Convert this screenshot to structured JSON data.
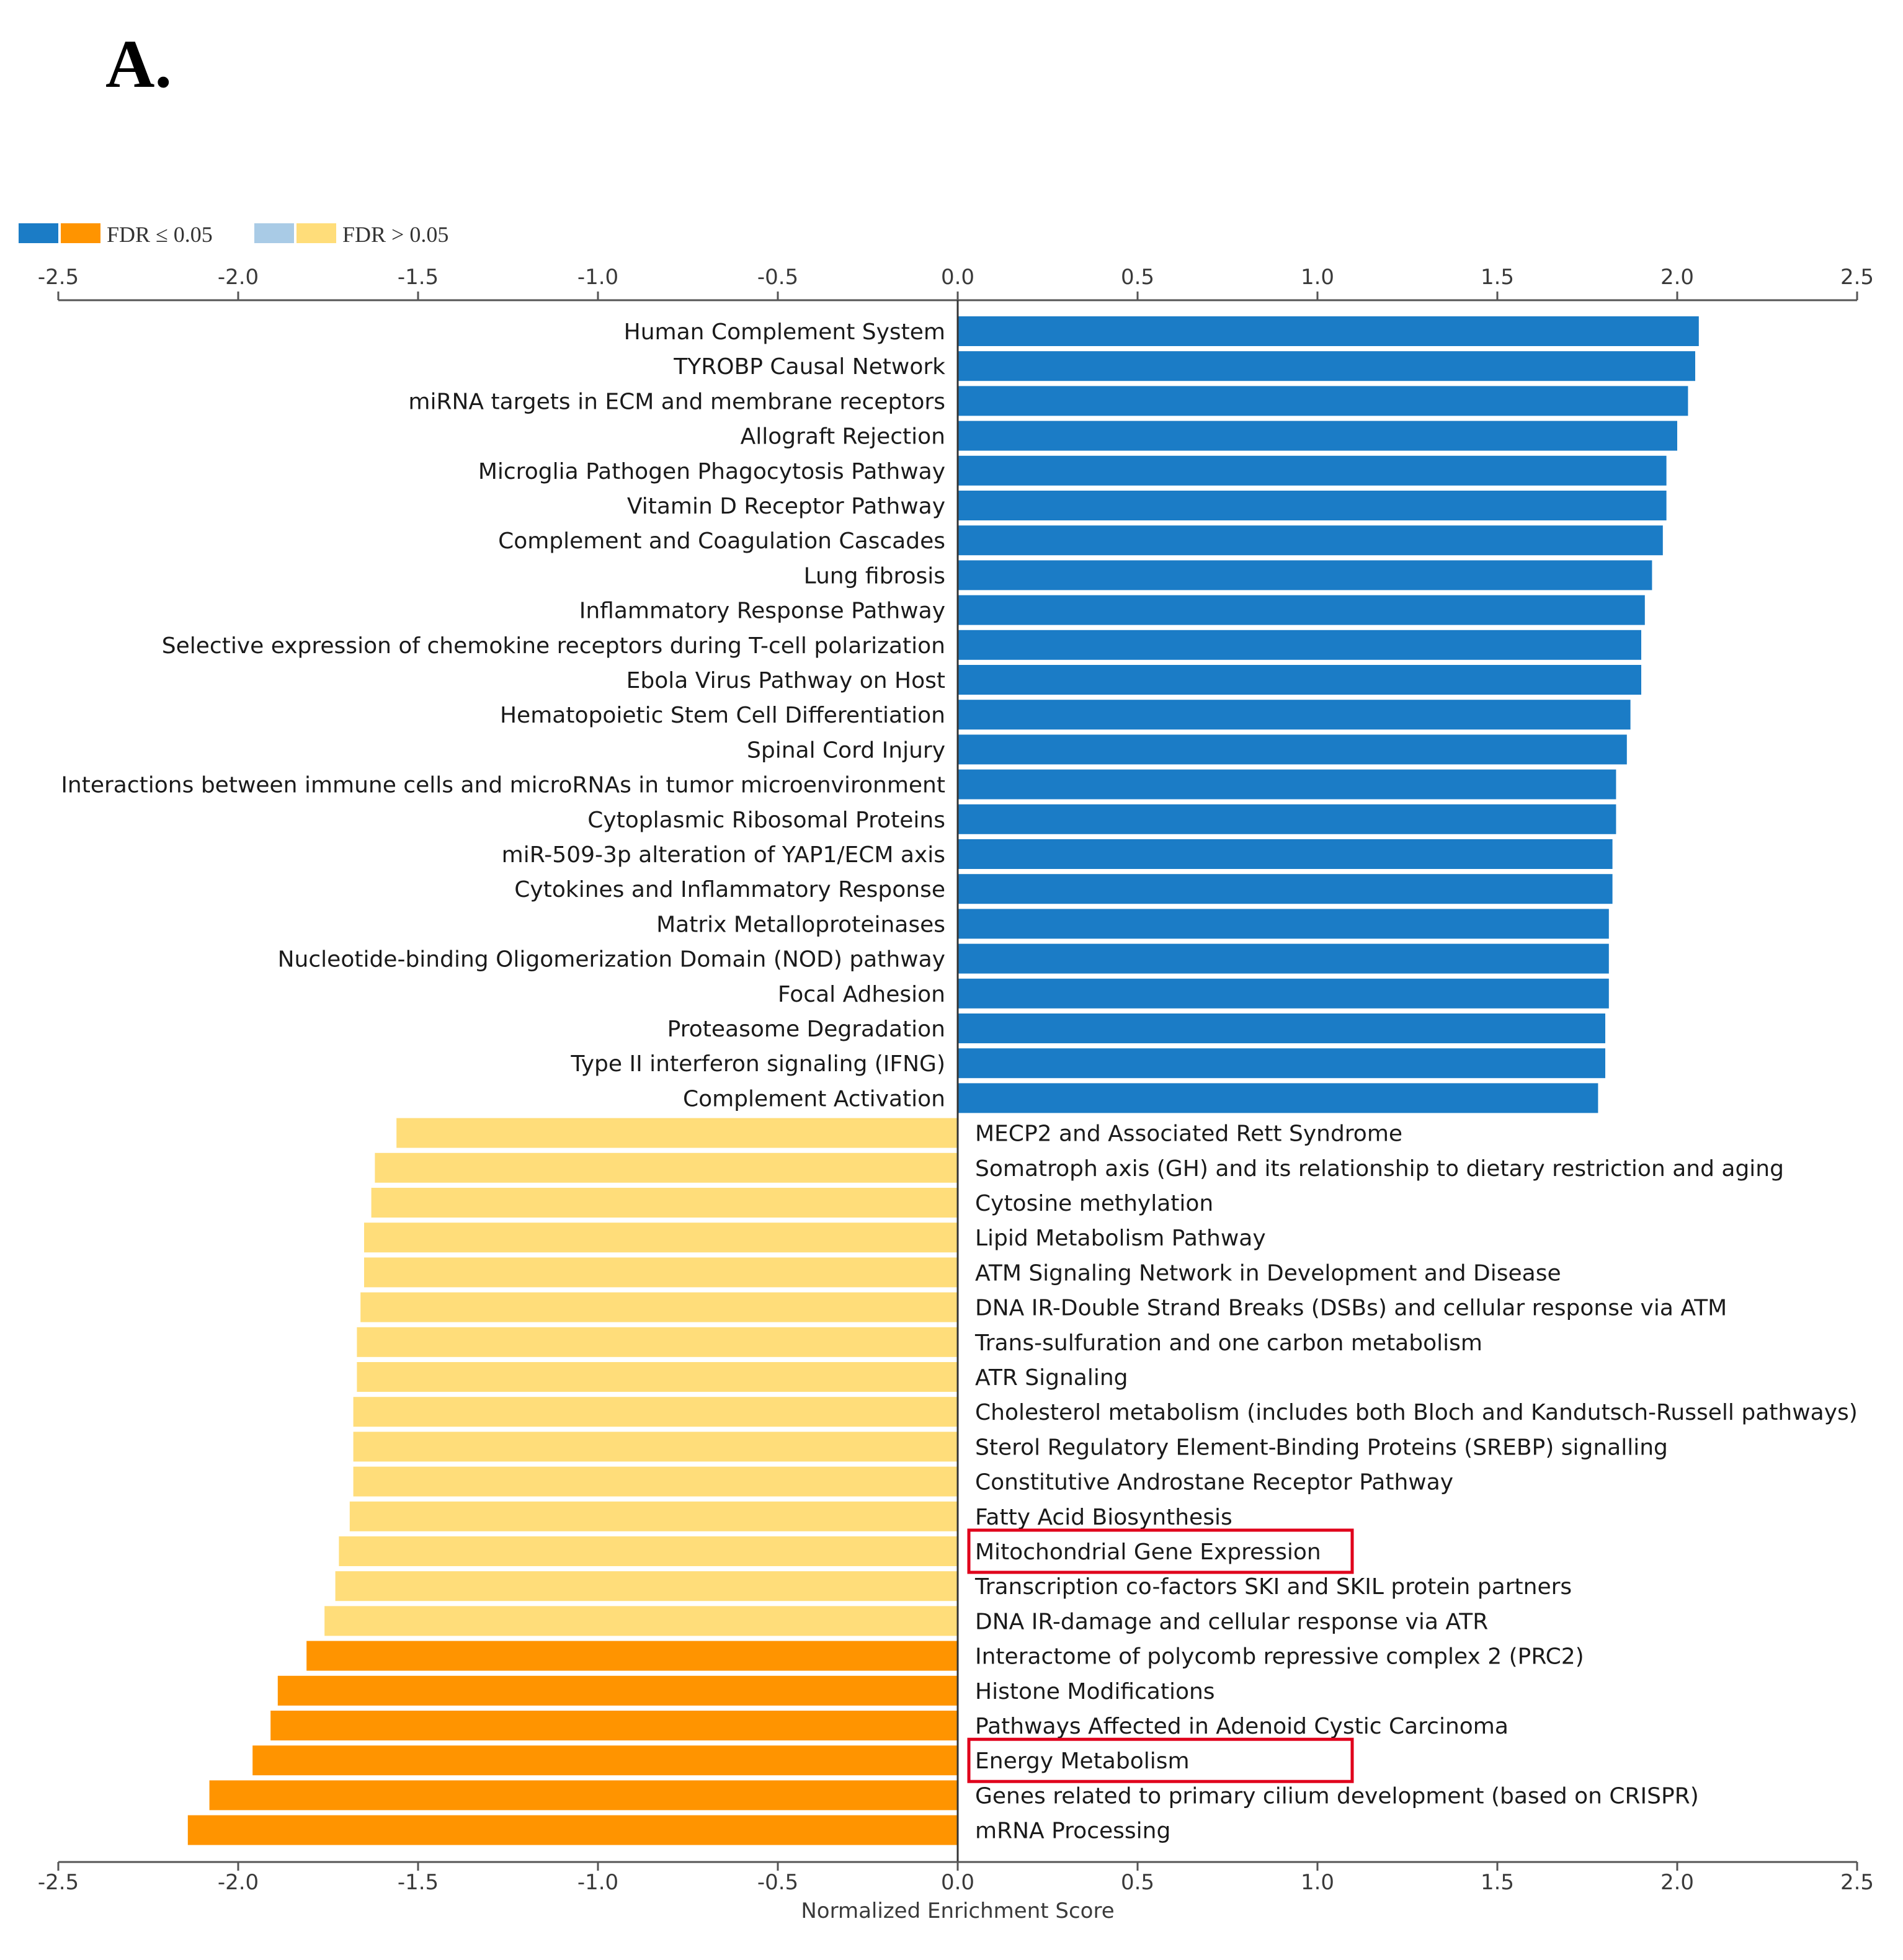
{
  "panel_label": "A.",
  "chart_data": {
    "type": "bar",
    "orientation": "horizontal",
    "xlabel": "Normalized Enrichment Score",
    "xlim": [
      -2.5,
      2.5
    ],
    "xticks": [
      "-2.5",
      "-2.0",
      "-1.5",
      "-1.0",
      "-0.5",
      "0.0",
      "0.5",
      "1.0",
      "1.5",
      "2.0",
      "2.5"
    ],
    "legend": {
      "placement": "top-left",
      "entries": [
        {
          "label": "FDR ≤ 0.05",
          "colors": [
            "#1b7cc6",
            "#ff9400"
          ]
        },
        {
          "label": "FDR > 0.05",
          "colors": [
            "#a9cbe6",
            "#ffdd7a"
          ]
        }
      ]
    },
    "colors": {
      "pos_sig": "#1b7cc6",
      "neg_sig": "#ff9400",
      "neg_nonsig": "#ffdd7a",
      "highlight_box": "#e0001b"
    },
    "bars": [
      {
        "label": "Human Complement System",
        "value": 2.06,
        "fdr_significant": true
      },
      {
        "label": "TYROBP Causal Network",
        "value": 2.05,
        "fdr_significant": true
      },
      {
        "label": "miRNA targets in ECM and membrane receptors",
        "value": 2.03,
        "fdr_significant": true
      },
      {
        "label": "Allograft Rejection",
        "value": 2.0,
        "fdr_significant": true
      },
      {
        "label": "Microglia Pathogen Phagocytosis Pathway",
        "value": 1.97,
        "fdr_significant": true
      },
      {
        "label": "Vitamin D Receptor Pathway",
        "value": 1.97,
        "fdr_significant": true
      },
      {
        "label": "Complement and Coagulation Cascades",
        "value": 1.96,
        "fdr_significant": true
      },
      {
        "label": "Lung fibrosis",
        "value": 1.93,
        "fdr_significant": true
      },
      {
        "label": "Inflammatory Response Pathway",
        "value": 1.91,
        "fdr_significant": true
      },
      {
        "label": "Selective expression of chemokine receptors during T-cell polarization",
        "value": 1.9,
        "fdr_significant": true
      },
      {
        "label": "Ebola Virus Pathway on Host",
        "value": 1.9,
        "fdr_significant": true
      },
      {
        "label": "Hematopoietic Stem Cell Differentiation",
        "value": 1.87,
        "fdr_significant": true
      },
      {
        "label": "Spinal Cord Injury",
        "value": 1.86,
        "fdr_significant": true
      },
      {
        "label": "Interactions between immune cells and microRNAs in tumor microenvironment",
        "value": 1.83,
        "fdr_significant": true
      },
      {
        "label": "Cytoplasmic Ribosomal Proteins",
        "value": 1.83,
        "fdr_significant": true
      },
      {
        "label": "miR-509-3p alteration of YAP1/ECM axis",
        "value": 1.82,
        "fdr_significant": true
      },
      {
        "label": "Cytokines and Inflammatory Response",
        "value": 1.82,
        "fdr_significant": true
      },
      {
        "label": "Matrix Metalloproteinases",
        "value": 1.81,
        "fdr_significant": true
      },
      {
        "label": "Nucleotide-binding Oligomerization Domain (NOD) pathway",
        "value": 1.81,
        "fdr_significant": true
      },
      {
        "label": "Focal Adhesion",
        "value": 1.81,
        "fdr_significant": true
      },
      {
        "label": "Proteasome Degradation",
        "value": 1.8,
        "fdr_significant": true
      },
      {
        "label": "Type II interferon signaling (IFNG)",
        "value": 1.8,
        "fdr_significant": true
      },
      {
        "label": "Complement Activation",
        "value": 1.78,
        "fdr_significant": true
      },
      {
        "label": "MECP2 and Associated Rett Syndrome",
        "value": -1.56,
        "fdr_significant": false
      },
      {
        "label": "Somatroph axis (GH) and its relationship to dietary restriction and aging",
        "value": -1.62,
        "fdr_significant": false
      },
      {
        "label": "Cytosine methylation",
        "value": -1.63,
        "fdr_significant": false
      },
      {
        "label": "Lipid Metabolism Pathway",
        "value": -1.65,
        "fdr_significant": false
      },
      {
        "label": "ATM Signaling Network in Development and Disease",
        "value": -1.65,
        "fdr_significant": false
      },
      {
        "label": "DNA IR-Double Strand Breaks (DSBs) and cellular response via ATM",
        "value": -1.66,
        "fdr_significant": false
      },
      {
        "label": "Trans-sulfuration and one carbon metabolism",
        "value": -1.67,
        "fdr_significant": false
      },
      {
        "label": "ATR Signaling",
        "value": -1.67,
        "fdr_significant": false
      },
      {
        "label": "Cholesterol metabolism (includes both Bloch and Kandutsch-Russell pathways)",
        "value": -1.68,
        "fdr_significant": false
      },
      {
        "label": "Sterol Regulatory Element-Binding Proteins (SREBP) signalling",
        "value": -1.68,
        "fdr_significant": false
      },
      {
        "label": "Constitutive Androstane Receptor Pathway",
        "value": -1.68,
        "fdr_significant": false
      },
      {
        "label": "Fatty Acid Biosynthesis",
        "value": -1.69,
        "fdr_significant": false
      },
      {
        "label": "Mitochondrial Gene Expression",
        "value": -1.72,
        "fdr_significant": false,
        "highlighted": true
      },
      {
        "label": "Transcription co-factors SKI and SKIL protein partners",
        "value": -1.73,
        "fdr_significant": false
      },
      {
        "label": "DNA IR-damage and cellular response via ATR",
        "value": -1.76,
        "fdr_significant": false
      },
      {
        "label": "Interactome of polycomb repressive complex 2 (PRC2)",
        "value": -1.81,
        "fdr_significant": true
      },
      {
        "label": "Histone Modifications",
        "value": -1.89,
        "fdr_significant": true
      },
      {
        "label": "Pathways Affected in Adenoid Cystic Carcinoma",
        "value": -1.91,
        "fdr_significant": true
      },
      {
        "label": "Energy Metabolism",
        "value": -1.96,
        "fdr_significant": true,
        "highlighted": true
      },
      {
        "label": "Genes related to primary cilium development (based on CRISPR)",
        "value": -2.08,
        "fdr_significant": true
      },
      {
        "label": "mRNA Processing",
        "value": -2.14,
        "fdr_significant": true
      }
    ]
  }
}
